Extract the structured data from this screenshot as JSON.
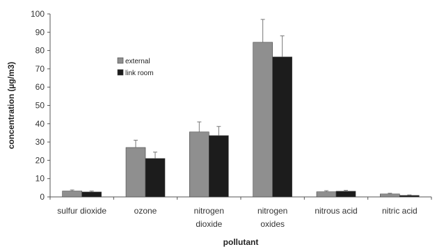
{
  "chart_data": {
    "type": "bar",
    "title": "",
    "xlabel": "pollutant",
    "ylabel": "concentration (µg/m3)",
    "ylim": [
      0,
      100
    ],
    "yticks": [
      0,
      10,
      20,
      30,
      40,
      50,
      60,
      70,
      80,
      90,
      100
    ],
    "grid": false,
    "legend_position": "upper-left",
    "categories": [
      [
        "sulfur dioxide"
      ],
      [
        "ozone"
      ],
      [
        "nitrogen",
        "dioxide"
      ],
      [
        "nitrogen",
        "oxides"
      ],
      [
        "nitrous acid"
      ],
      [
        "nitric acid"
      ]
    ],
    "series": [
      {
        "name": "external",
        "color": "#8f8f8f",
        "values": [
          3.2,
          27.0,
          35.5,
          84.5,
          2.8,
          1.6
        ],
        "errors": [
          0.6,
          4.0,
          5.5,
          12.5,
          0.6,
          0.4
        ]
      },
      {
        "name": "link room",
        "color": "#1c1c1c",
        "values": [
          2.7,
          21.0,
          33.5,
          76.5,
          3.1,
          0.8
        ],
        "errors": [
          0.5,
          3.5,
          5.0,
          11.5,
          0.5,
          0.3
        ]
      }
    ]
  }
}
